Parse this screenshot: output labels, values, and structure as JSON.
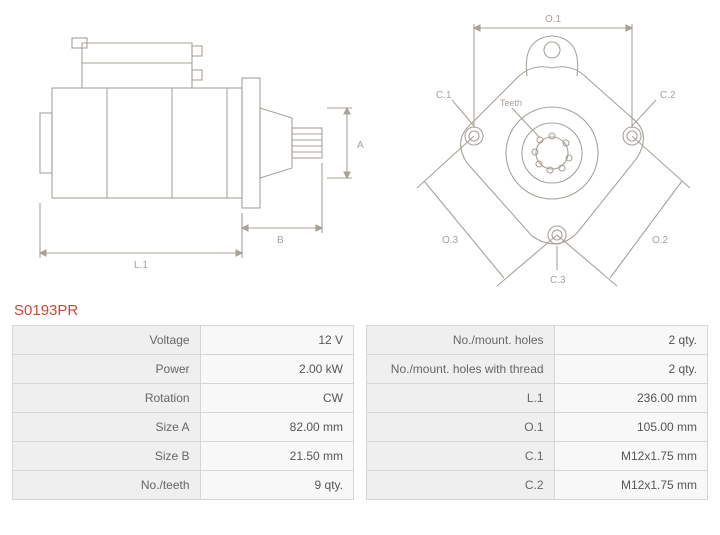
{
  "product_code": "S0193PR",
  "diagram": {
    "stroke_color": "#a8a199",
    "stroke_width": 1.1,
    "label_color": "#a8a199",
    "label_fontsize": 10,
    "side_view": {
      "labels": {
        "L1": "L.1",
        "A": "A",
        "B": "B"
      }
    },
    "front_view": {
      "labels": {
        "O1": "O.1",
        "O2": "O.2",
        "O3": "O.3",
        "C1": "C.1",
        "C2": "C.2",
        "C3": "C.3",
        "Teeth": "Teeth"
      }
    }
  },
  "specs_left": [
    {
      "label": "Voltage",
      "value": "12 V"
    },
    {
      "label": "Power",
      "value": "2.00 kW"
    },
    {
      "label": "Rotation",
      "value": "CW"
    },
    {
      "label": "Size A",
      "value": "82.00 mm"
    },
    {
      "label": "Size B",
      "value": "21.50 mm"
    },
    {
      "label": "No./teeth",
      "value": "9 qty."
    }
  ],
  "specs_right": [
    {
      "label": "No./mount. holes",
      "value": "2 qty."
    },
    {
      "label": "No./mount. holes with thread",
      "value": "2 qty."
    },
    {
      "label": "L.1",
      "value": "236.00 mm"
    },
    {
      "label": "O.1",
      "value": "105.00 mm"
    },
    {
      "label": "C.1",
      "value": "M12x1.75 mm"
    },
    {
      "label": "C.2",
      "value": "M12x1.75 mm"
    }
  ]
}
